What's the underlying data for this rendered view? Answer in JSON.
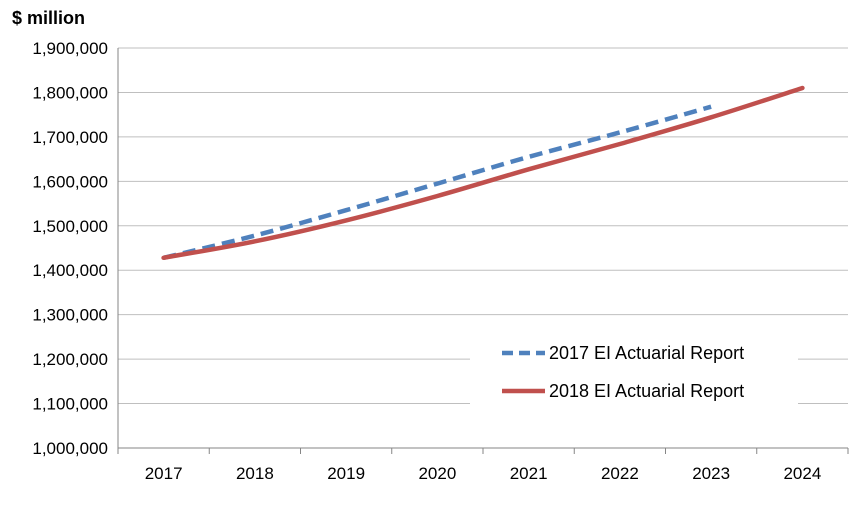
{
  "chart_data": {
    "type": "line",
    "ylabel": "$ million",
    "xlabel": "",
    "title": "",
    "categories": [
      "2017",
      "2018",
      "2019",
      "2020",
      "2021",
      "2022",
      "2023",
      "2024"
    ],
    "x": [
      2017,
      2018,
      2019,
      2020,
      2021,
      2022,
      2023,
      2024
    ],
    "ylim": [
      1000000,
      1900000
    ],
    "ytick_values": [
      1000000,
      1100000,
      1200000,
      1300000,
      1400000,
      1500000,
      1600000,
      1700000,
      1800000,
      1900000
    ],
    "ytick_labels": [
      "1,000,000",
      "1,100,000",
      "1,200,000",
      "1,300,000",
      "1,400,000",
      "1,500,000",
      "1,600,000",
      "1,700,000",
      "1,800,000",
      "1,900,000"
    ],
    "grid": "horizontal",
    "legend_position": "bottom-right",
    "series": [
      {
        "name": "2017 EI Actuarial Report",
        "color": "#4f81bd",
        "style": "dashed",
        "x": [
          2017,
          2018,
          2019,
          2020,
          2021,
          2022,
          2023
        ],
        "values": [
          1428000,
          1478000,
          1535000,
          1595000,
          1655000,
          1710000,
          1768000
        ]
      },
      {
        "name": "2018 EI Actuarial Report",
        "color": "#c0504d",
        "style": "solid",
        "x": [
          2017,
          2018,
          2019,
          2020,
          2021,
          2022,
          2023,
          2024
        ],
        "values": [
          1428000,
          1465000,
          1512000,
          1567000,
          1627000,
          1684000,
          1744000,
          1810000
        ]
      }
    ]
  }
}
